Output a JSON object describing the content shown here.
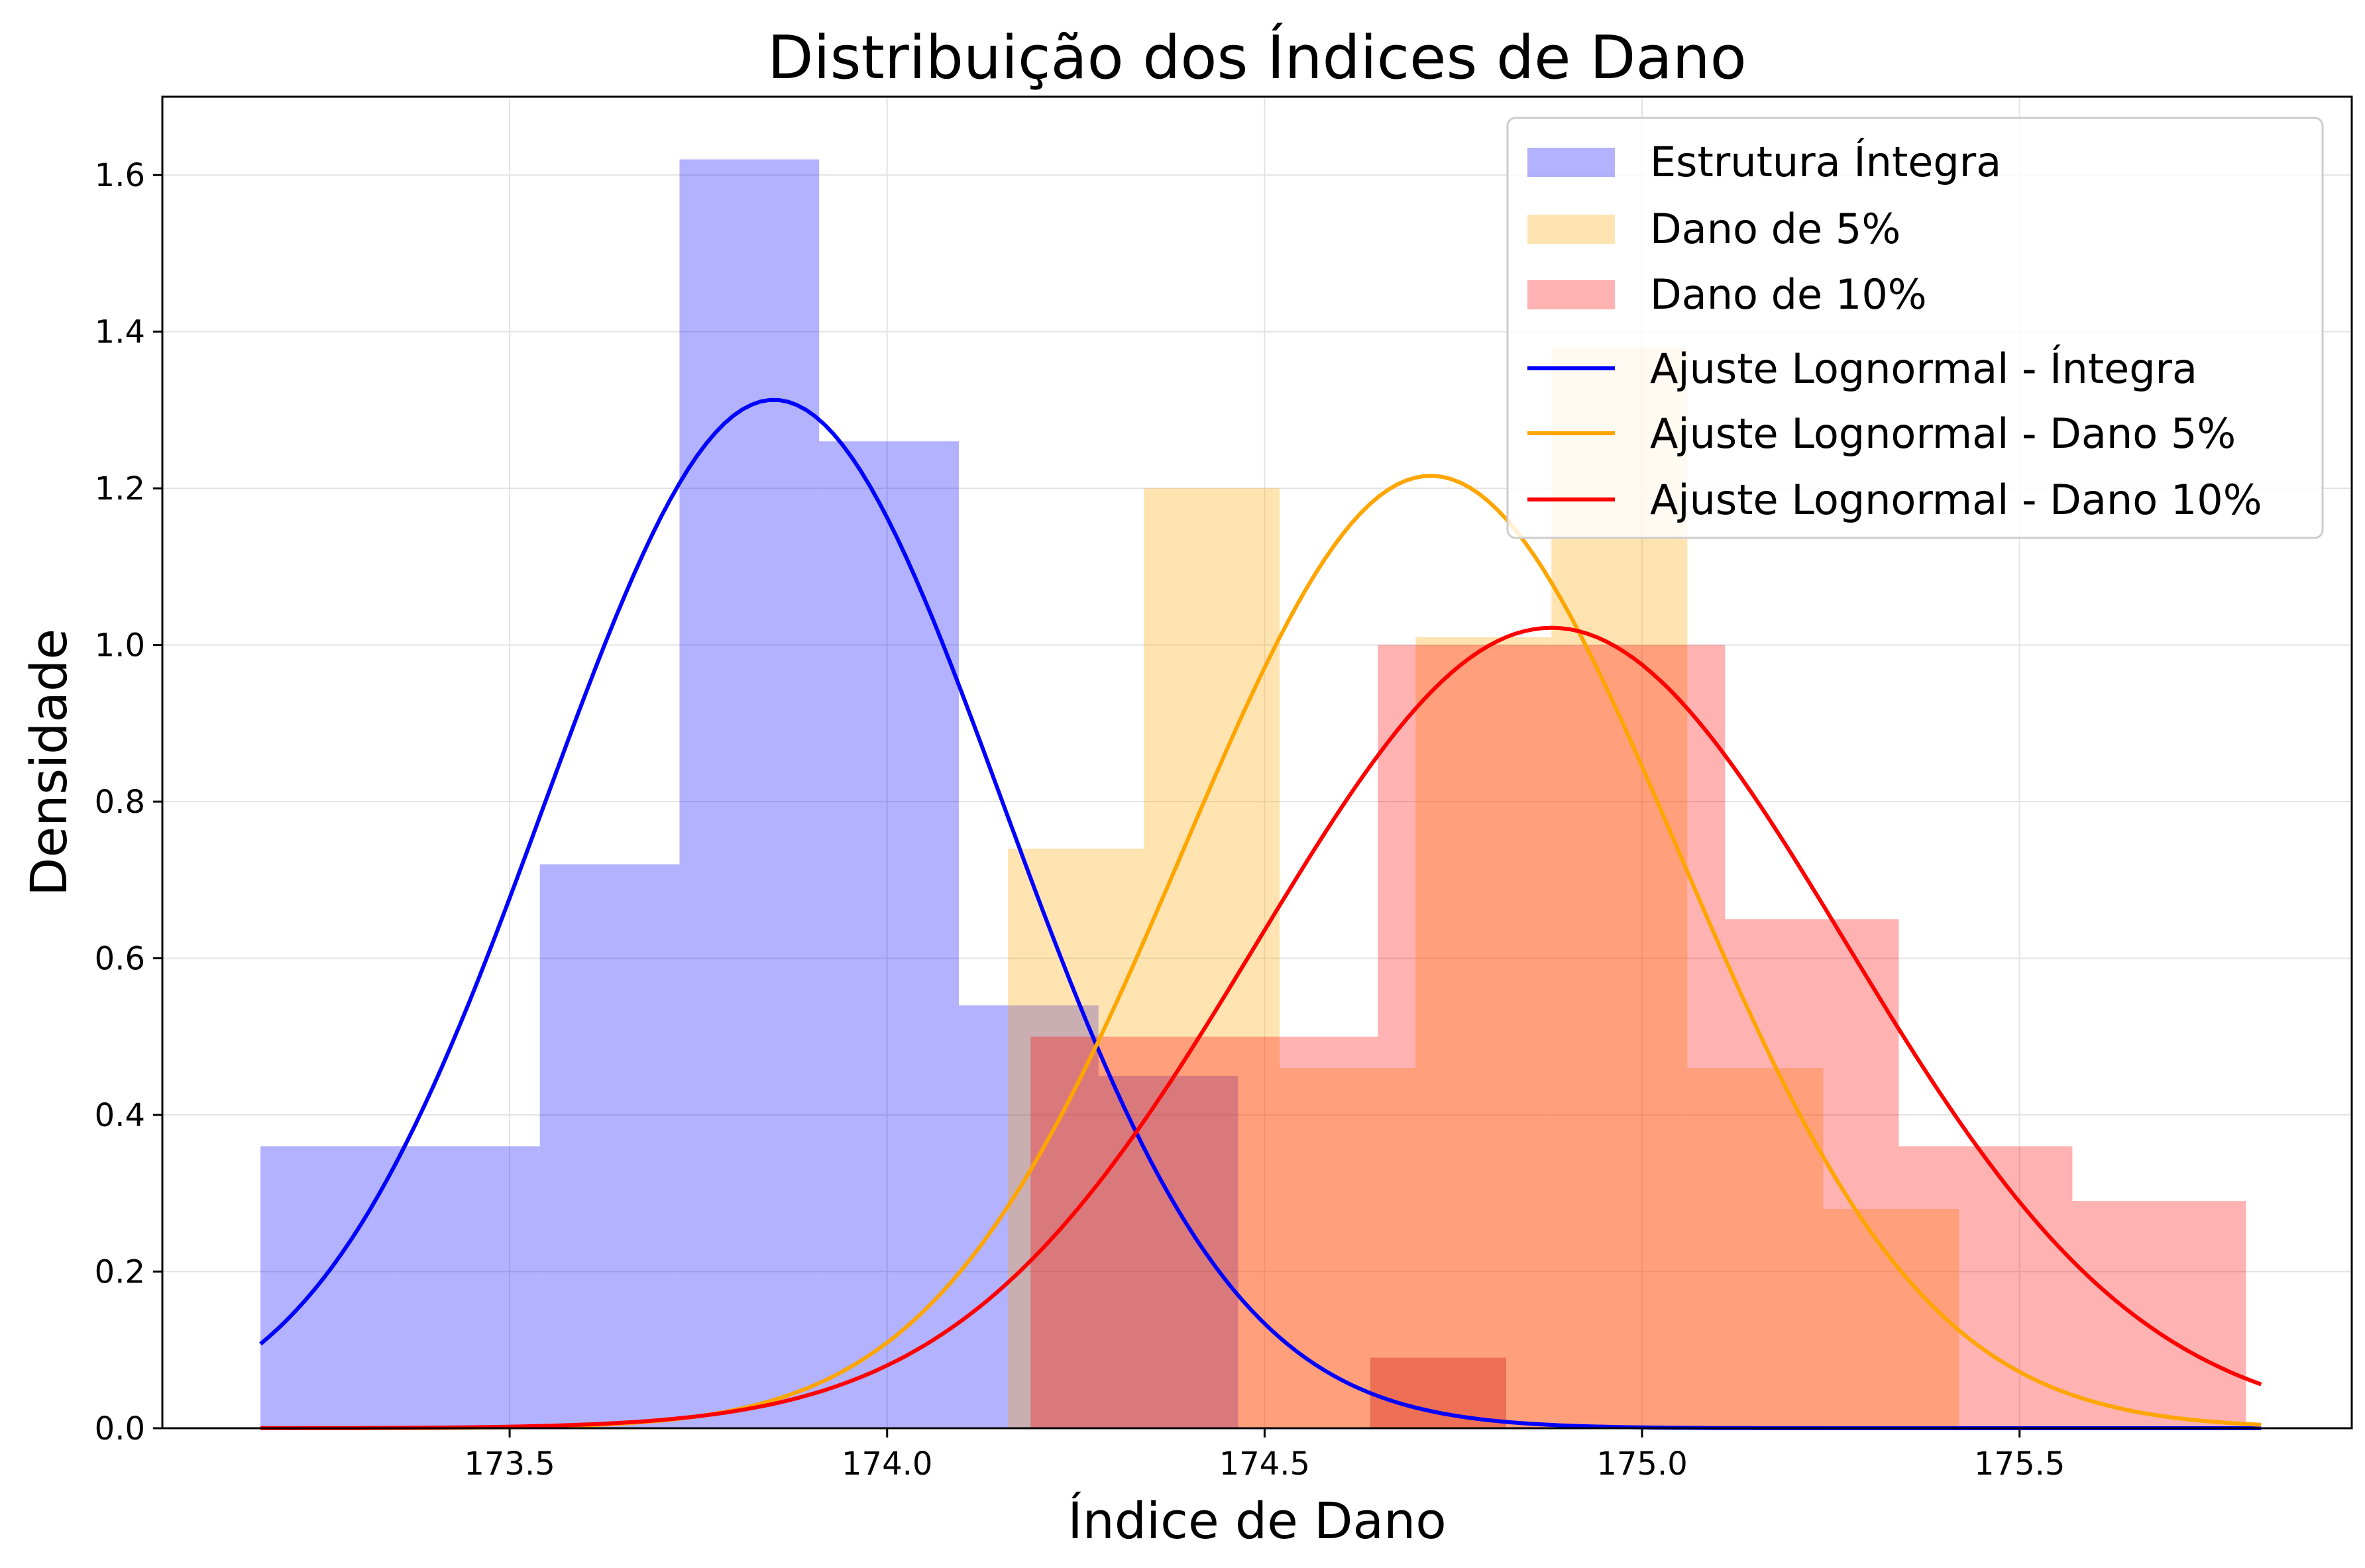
{
  "chart_data": {
    "type": "bar",
    "title": "Distribuição dos Índices de Dano",
    "xlabel": "Índice de Dano",
    "ylabel": "Densidade",
    "xlim": [
      173.04,
      175.94
    ],
    "ylim": [
      0,
      1.7
    ],
    "xticks": [
      {
        "value": 173.5,
        "label": "173.5"
      },
      {
        "value": 174.0,
        "label": "174.0"
      },
      {
        "value": 174.5,
        "label": "174.5"
      },
      {
        "value": 175.0,
        "label": "175.0"
      },
      {
        "value": 175.5,
        "label": "175.5"
      }
    ],
    "yticks": [
      {
        "value": 0.0,
        "label": "0.0"
      },
      {
        "value": 0.2,
        "label": "0.2"
      },
      {
        "value": 0.4,
        "label": "0.4"
      },
      {
        "value": 0.6,
        "label": "0.6"
      },
      {
        "value": 0.8,
        "label": "0.8"
      },
      {
        "value": 1.0,
        "label": "1.0"
      },
      {
        "value": 1.2,
        "label": "1.2"
      },
      {
        "value": 1.4,
        "label": "1.4"
      },
      {
        "value": 1.6,
        "label": "1.6"
      }
    ],
    "grid": true,
    "legend_position": "top-right",
    "histograms": [
      {
        "name": "Estrutura Íntegra",
        "color": "#0000ff",
        "alpha": 0.3,
        "edges": [
          173.17,
          173.355,
          173.54,
          173.725,
          173.91,
          174.095,
          174.28,
          174.465
        ],
        "values": [
          0.36,
          0.36,
          0.72,
          1.62,
          1.26,
          0.54,
          0.45
        ]
      },
      {
        "name": "Dano de 5%",
        "color": "#ffa500",
        "alpha": 0.3,
        "edges": [
          174.16,
          174.34,
          174.52,
          174.7,
          174.88,
          175.06,
          175.24,
          175.42
        ],
        "values": [
          0.74,
          1.2,
          0.46,
          1.01,
          1.38,
          0.46,
          0.28
        ]
      },
      {
        "name": "Dano de 10%",
        "color": "#ff0000",
        "alpha": 0.3,
        "edges": [
          174.19,
          174.42,
          174.65,
          174.88,
          175.11,
          175.34,
          175.57,
          175.8
        ],
        "values": [
          0.5,
          0.5,
          1.0,
          1.0,
          0.65,
          0.36,
          0.29
        ]
      },
      {
        "name": "",
        "color": "#c00000",
        "alpha": 0.3,
        "edges": [
          174.64,
          174.82
        ],
        "values": [
          0.09
        ]
      }
    ],
    "series": [
      {
        "name": "Ajuste Lognormal - Íntegra",
        "color": "#0000ff",
        "mean": 173.85,
        "sd": 0.304,
        "peak": 1.313,
        "x_range": [
          173.17,
          175.82
        ]
      },
      {
        "name": "Ajuste Lognormal - Dano 5%",
        "color": "#ffa500",
        "mean": 174.72,
        "sd": 0.328,
        "peak": 1.216,
        "x_range": [
          173.17,
          175.82
        ]
      },
      {
        "name": "Ajuste Lognormal - Dano 10%",
        "color": "#ff0000",
        "mean": 174.88,
        "sd": 0.39,
        "peak": 1.022,
        "x_range": [
          173.17,
          175.82
        ]
      }
    ],
    "legend": [
      {
        "label": "Estrutura Íntegra",
        "kind": "patch",
        "color": "#0000ff",
        "alpha": 0.3
      },
      {
        "label": "Dano de 5%",
        "kind": "patch",
        "color": "#ffa500",
        "alpha": 0.3
      },
      {
        "label": "Dano de 10%",
        "kind": "patch",
        "color": "#ff0000",
        "alpha": 0.3
      },
      {
        "label": "Ajuste Lognormal - Íntegra",
        "kind": "line",
        "color": "#0000ff"
      },
      {
        "label": "Ajuste Lognormal - Dano 5%",
        "kind": "line",
        "color": "#ffa500"
      },
      {
        "label": "Ajuste Lognormal - Dano 10%",
        "kind": "line",
        "color": "#ff0000"
      }
    ]
  }
}
